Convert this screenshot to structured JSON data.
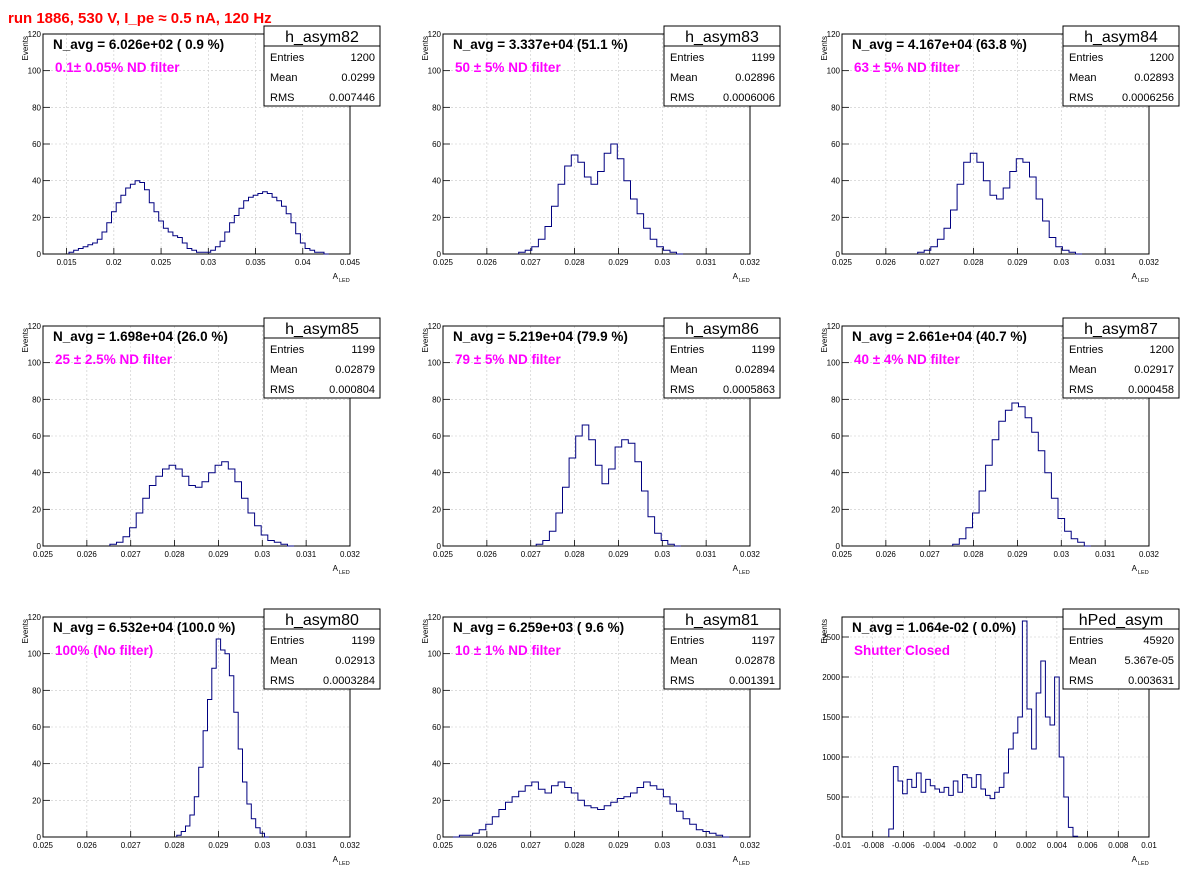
{
  "title": "run 1886,   530 V, I_pe ≈ 0.5 nA, 120 Hz",
  "colors": {
    "title": "#ff0000",
    "annotation": "#ff00ff",
    "histogram": "#000080",
    "grid": "#c8c8c8"
  },
  "y_axis_label": "Events",
  "x_axis_label": "A",
  "x_axis_subscript": "LED",
  "stats_labels": {
    "entries": "Entries",
    "mean": "Mean",
    "rms": "RMS"
  },
  "chart_data": [
    {
      "type": "bar",
      "name": "h_asym82",
      "navg": "N_avg = 6.026e+02 ( 0.9 %)",
      "annotation": "0.1± 0.05% ND filter",
      "entries": "1200",
      "mean": "0.0299",
      "rms": "0.007446",
      "xlim": [
        0.0125,
        0.045
      ],
      "ylim": [
        0,
        120
      ],
      "xticks": [
        "0.015",
        "0.02",
        "0.025",
        "0.03",
        "0.035",
        "0.04",
        "0.045"
      ],
      "yticks": [
        "20",
        "40",
        "60",
        "80",
        "100",
        "120"
      ],
      "x": [
        0.0155,
        0.016,
        0.0165,
        0.017,
        0.0175,
        0.018,
        0.0185,
        0.019,
        0.0195,
        0.02,
        0.0205,
        0.021,
        0.0215,
        0.022,
        0.0225,
        0.023,
        0.0235,
        0.024,
        0.0245,
        0.025,
        0.0255,
        0.026,
        0.0265,
        0.027,
        0.0275,
        0.028,
        0.0285,
        0.029,
        0.0295,
        0.03,
        0.0305,
        0.031,
        0.0315,
        0.032,
        0.0325,
        0.033,
        0.0335,
        0.034,
        0.0345,
        0.035,
        0.0355,
        0.036,
        0.0365,
        0.037,
        0.0375,
        0.038,
        0.0385,
        0.039,
        0.0395,
        0.04,
        0.0405,
        0.041,
        0.0415,
        0.042,
        0.0425
      ],
      "values": [
        1,
        2,
        3,
        4,
        5,
        6,
        8,
        12,
        17,
        23,
        28,
        32,
        36,
        38,
        40,
        39,
        35,
        28,
        23,
        18,
        14,
        12,
        10,
        9,
        6,
        3,
        2,
        1,
        1,
        1,
        2,
        4,
        7,
        12,
        17,
        21,
        25,
        29,
        31,
        32,
        33,
        34,
        33,
        31,
        29,
        26,
        22,
        17,
        11,
        6,
        3,
        2,
        1,
        1,
        0
      ]
    },
    {
      "type": "bar",
      "name": "h_asym83",
      "navg": "N_avg = 3.337e+04 (51.1 %)",
      "annotation": "50 ± 5% ND filter",
      "entries": "1199",
      "mean": "0.02896",
      "rms": "0.0006006",
      "xlim": [
        0.025,
        0.032
      ],
      "ylim": [
        0,
        120
      ],
      "xticks": [
        "0.025",
        "0.026",
        "0.027",
        "0.028",
        "0.029",
        "0.03",
        "0.031",
        "0.032"
      ],
      "yticks": [
        "20",
        "40",
        "60",
        "80",
        "100",
        "120"
      ],
      "x": [
        0.0268,
        0.02695,
        0.0271,
        0.02725,
        0.0274,
        0.02755,
        0.0277,
        0.02785,
        0.028,
        0.02815,
        0.0283,
        0.02845,
        0.0286,
        0.02875,
        0.0289,
        0.02905,
        0.0292,
        0.02935,
        0.0295,
        0.02965,
        0.0298,
        0.02995,
        0.0301,
        0.03025,
        0.0304
      ],
      "values": [
        1,
        2,
        4,
        8,
        15,
        26,
        38,
        48,
        54,
        50,
        42,
        38,
        45,
        55,
        60,
        52,
        40,
        30,
        22,
        14,
        8,
        4,
        2,
        1,
        0
      ]
    },
    {
      "type": "bar",
      "name": "h_asym84",
      "navg": "N_avg = 4.167e+04 (63.8 %)",
      "annotation": "63 ± 5% ND filter",
      "entries": "1200",
      "mean": "0.02893",
      "rms": "0.0006256",
      "xlim": [
        0.025,
        0.032
      ],
      "ylim": [
        0,
        120
      ],
      "xticks": [
        "0.025",
        "0.026",
        "0.027",
        "0.028",
        "0.029",
        "0.03",
        "0.031",
        "0.032"
      ],
      "yticks": [
        "20",
        "40",
        "60",
        "80",
        "100",
        "120"
      ],
      "x": [
        0.0268,
        0.02695,
        0.0271,
        0.02725,
        0.0274,
        0.02755,
        0.0277,
        0.02785,
        0.028,
        0.02815,
        0.0283,
        0.02845,
        0.0286,
        0.02875,
        0.0289,
        0.02905,
        0.0292,
        0.02935,
        0.0295,
        0.02965,
        0.0298,
        0.02995,
        0.0301,
        0.03025,
        0.0304
      ],
      "values": [
        1,
        2,
        4,
        8,
        14,
        24,
        38,
        50,
        55,
        50,
        40,
        32,
        30,
        36,
        45,
        52,
        50,
        42,
        30,
        18,
        9,
        4,
        2,
        1,
        0
      ]
    },
    {
      "type": "bar",
      "name": "h_asym85",
      "navg": "N_avg = 1.698e+04 (26.0 %)",
      "annotation": "25 ± 2.5% ND filter",
      "entries": "1199",
      "mean": "0.02879",
      "rms": "0.000804",
      "xlim": [
        0.025,
        0.032
      ],
      "ylim": [
        0,
        120
      ],
      "xticks": [
        "0.025",
        "0.026",
        "0.027",
        "0.028",
        "0.029",
        "0.03",
        "0.031",
        "0.032"
      ],
      "yticks": [
        "20",
        "40",
        "60",
        "80",
        "100",
        "120"
      ],
      "x": [
        0.0266,
        0.02675,
        0.0269,
        0.02705,
        0.0272,
        0.02735,
        0.0275,
        0.02765,
        0.0278,
        0.02795,
        0.0281,
        0.02825,
        0.0284,
        0.02855,
        0.0287,
        0.02885,
        0.029,
        0.02915,
        0.0293,
        0.02945,
        0.0296,
        0.02975,
        0.0299,
        0.03005,
        0.0302,
        0.03035,
        0.0305,
        0.03065
      ],
      "values": [
        1,
        2,
        5,
        10,
        18,
        26,
        33,
        38,
        42,
        44,
        42,
        38,
        33,
        32,
        35,
        40,
        44,
        46,
        42,
        35,
        26,
        18,
        11,
        6,
        3,
        2,
        1,
        0
      ]
    },
    {
      "type": "bar",
      "name": "h_asym86",
      "navg": "N_avg = 5.219e+04 (79.9 %)",
      "annotation": "79 ± 5% ND filter",
      "entries": "1199",
      "mean": "0.02894",
      "rms": "0.0005863",
      "xlim": [
        0.025,
        0.032
      ],
      "ylim": [
        0,
        120
      ],
      "xticks": [
        "0.025",
        "0.026",
        "0.027",
        "0.028",
        "0.029",
        "0.03",
        "0.031",
        "0.032"
      ],
      "yticks": [
        "20",
        "40",
        "60",
        "80",
        "100",
        "120"
      ],
      "x": [
        0.0272,
        0.02735,
        0.0275,
        0.02765,
        0.0278,
        0.02795,
        0.0281,
        0.02825,
        0.0284,
        0.02855,
        0.0287,
        0.02885,
        0.029,
        0.02915,
        0.0293,
        0.02945,
        0.0296,
        0.02975,
        0.0299,
        0.03005,
        0.0302,
        0.03035
      ],
      "values": [
        1,
        3,
        8,
        18,
        32,
        48,
        60,
        66,
        58,
        44,
        34,
        42,
        54,
        58,
        56,
        46,
        30,
        16,
        7,
        3,
        1,
        0
      ]
    },
    {
      "type": "bar",
      "name": "h_asym87",
      "navg": "N_avg = 2.661e+04 (40.7 %)",
      "annotation": "40 ± 4% ND filter",
      "entries": "1200",
      "mean": "0.02917",
      "rms": "0.000458",
      "xlim": [
        0.025,
        0.032
      ],
      "ylim": [
        0,
        120
      ],
      "xticks": [
        "0.025",
        "0.026",
        "0.027",
        "0.028",
        "0.029",
        "0.03",
        "0.031",
        "0.032"
      ],
      "yticks": [
        "20",
        "40",
        "60",
        "80",
        "100",
        "120"
      ],
      "x": [
        0.0276,
        0.02775,
        0.0279,
        0.02805,
        0.0282,
        0.02835,
        0.0285,
        0.02865,
        0.0288,
        0.02895,
        0.0291,
        0.02925,
        0.0294,
        0.02955,
        0.0297,
        0.02985,
        0.03,
        0.03015,
        0.0303,
        0.03045,
        0.0306
      ],
      "values": [
        1,
        4,
        10,
        18,
        30,
        44,
        58,
        68,
        74,
        78,
        76,
        70,
        62,
        52,
        40,
        26,
        15,
        8,
        4,
        2,
        0
      ]
    },
    {
      "type": "bar",
      "name": "h_asym80",
      "navg": "N_avg = 6.532e+04 (100.0 %)",
      "annotation": "100% (No filter)",
      "entries": "1199",
      "mean": "0.02913",
      "rms": "0.0003284",
      "xlim": [
        0.025,
        0.032
      ],
      "ylim": [
        0,
        120
      ],
      "xticks": [
        "0.025",
        "0.026",
        "0.027",
        "0.028",
        "0.029",
        "0.03",
        "0.031",
        "0.032"
      ],
      "yticks": [
        "20",
        "40",
        "60",
        "80",
        "100",
        "120"
      ],
      "x": [
        0.0281,
        0.0282,
        0.0283,
        0.0284,
        0.0285,
        0.0286,
        0.0287,
        0.0288,
        0.0289,
        0.029,
        0.0291,
        0.0292,
        0.0293,
        0.0294,
        0.0295,
        0.0296,
        0.0297,
        0.0298,
        0.0299,
        0.03,
        0.0301
      ],
      "values": [
        1,
        3,
        6,
        12,
        22,
        38,
        58,
        75,
        92,
        108,
        102,
        100,
        88,
        68,
        48,
        30,
        18,
        10,
        5,
        2,
        0
      ]
    },
    {
      "type": "bar",
      "name": "h_asym81",
      "navg": "N_avg = 6.259e+03 ( 9.6 %)",
      "annotation": "10 ± 1% ND filter",
      "entries": "1197",
      "mean": "0.02878",
      "rms": "0.001391",
      "xlim": [
        0.025,
        0.032
      ],
      "ylim": [
        0,
        120
      ],
      "xticks": [
        "0.025",
        "0.026",
        "0.027",
        "0.028",
        "0.029",
        "0.03",
        "0.031",
        "0.032"
      ],
      "yticks": [
        "20",
        "40",
        "60",
        "80",
        "100",
        "120"
      ],
      "x": [
        0.0253,
        0.02545,
        0.0256,
        0.02575,
        0.0259,
        0.02605,
        0.0262,
        0.02635,
        0.0265,
        0.02665,
        0.0268,
        0.02695,
        0.0271,
        0.02725,
        0.0274,
        0.02755,
        0.0277,
        0.02785,
        0.028,
        0.02815,
        0.0283,
        0.02845,
        0.0286,
        0.02875,
        0.0289,
        0.02905,
        0.0292,
        0.02935,
        0.0295,
        0.02965,
        0.0298,
        0.02995,
        0.0301,
        0.03025,
        0.0304,
        0.03055,
        0.0307,
        0.03085,
        0.031,
        0.03115,
        0.0313,
        0.03145
      ],
      "values": [
        0,
        1,
        1,
        2,
        4,
        7,
        11,
        15,
        19,
        22,
        25,
        28,
        30,
        26,
        24,
        28,
        30,
        27,
        24,
        20,
        17,
        16,
        15,
        17,
        19,
        21,
        22,
        24,
        27,
        30,
        28,
        26,
        22,
        18,
        14,
        10,
        7,
        4,
        3,
        2,
        1,
        0
      ]
    },
    {
      "type": "bar",
      "name": "hPed_asym",
      "navg": "N_avg = 1.064e-02 ( 0.0%)",
      "annotation": "Shutter Closed",
      "entries": "45920",
      "mean": "5.367e-05",
      "rms": "0.003631",
      "xlim": [
        -0.01,
        0.01
      ],
      "ylim": [
        0,
        2750
      ],
      "xticks": [
        "-0.01",
        "-0.008",
        "-0.006",
        "-0.004",
        "-0.002",
        "0",
        "0.002",
        "0.004",
        "0.006",
        "0.008",
        "0.01"
      ],
      "yticks": [
        "500",
        "1000",
        "1500",
        "2000",
        "2500"
      ],
      "x": [
        -0.0068,
        -0.0065,
        -0.0062,
        -0.0059,
        -0.0056,
        -0.0053,
        -0.005,
        -0.0047,
        -0.0044,
        -0.0041,
        -0.0038,
        -0.0035,
        -0.0032,
        -0.0029,
        -0.0026,
        -0.0023,
        -0.002,
        -0.0017,
        -0.0014,
        -0.0011,
        -0.0008,
        -0.0005,
        -0.0002,
        0.0001,
        0.0004,
        0.0007,
        0.001,
        0.0013,
        0.0016,
        0.0019,
        0.0022,
        0.0025,
        0.0028,
        0.0031,
        0.0034,
        0.0037,
        0.004,
        0.0043,
        0.0046,
        0.0049,
        0.0052
      ],
      "values": [
        100,
        880,
        700,
        540,
        720,
        620,
        800,
        560,
        720,
        640,
        600,
        560,
        620,
        520,
        700,
        560,
        780,
        740,
        620,
        780,
        600,
        520,
        480,
        560,
        620,
        800,
        1100,
        1300,
        1500,
        2700,
        1600,
        1100,
        1800,
        2200,
        1500,
        1400,
        2000,
        1000,
        500,
        120,
        10
      ]
    }
  ]
}
